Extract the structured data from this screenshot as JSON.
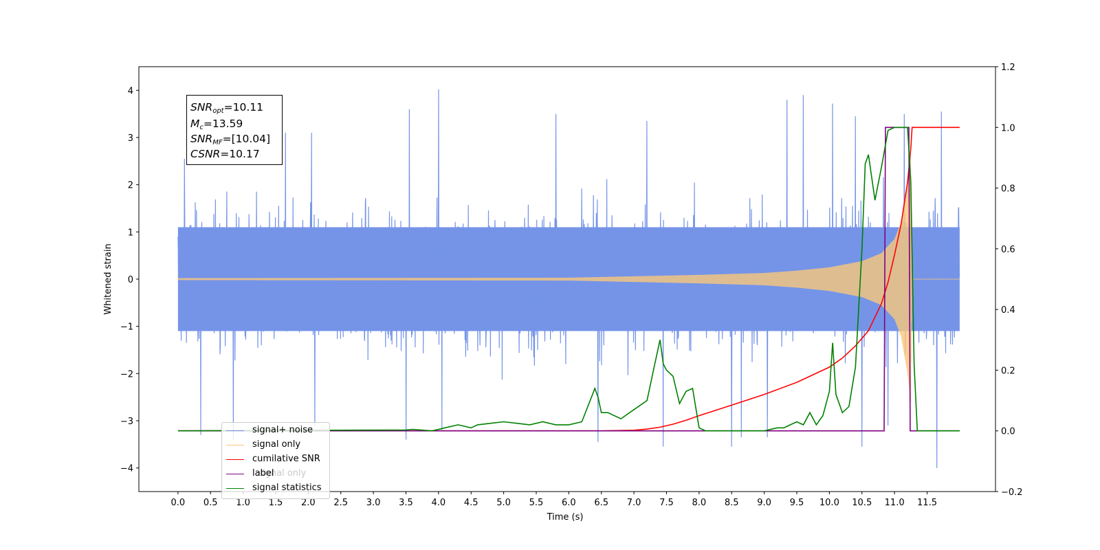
{
  "chart_data": {
    "type": "line",
    "xlabel": "Time (s)",
    "ylabel": "Whitened strain",
    "xlim": [
      -0.6,
      12.55
    ],
    "ylim": [
      -4.5,
      4.5
    ],
    "y2lim": [
      -0.2,
      1.2
    ],
    "x_ticks": [
      "0.0",
      "0.5",
      "1.0",
      "1.5",
      "2.0",
      "2.5",
      "3.0",
      "3.5",
      "4.0",
      "4.5",
      "5.0",
      "5.5",
      "6.0",
      "6.5",
      "7.0",
      "7.5",
      "8.0",
      "8.5",
      "9.0",
      "9.5",
      "10.0",
      "10.5",
      "11.0",
      "11.5"
    ],
    "y_ticks": [
      "−4",
      "−3",
      "−2",
      "−1",
      "0",
      "1",
      "2",
      "3",
      "4"
    ],
    "y2_ticks": [
      "−0.2",
      "0.0",
      "0.2",
      "0.4",
      "0.6",
      "0.8",
      "1.0",
      "1.2"
    ],
    "annotation": {
      "snr_opt": "=10.11",
      "mc": "=13.59",
      "snr_mf": "=[10.04]",
      "csnr": "=10.17"
    },
    "series": [
      {
        "name": "signal+ noise",
        "color": "#7594e8",
        "axis": "left",
        "noise_band": {
          "x_start": 0.0,
          "x_end": 12.0,
          "typical_max": 2.6,
          "typical_min": -2.6
        },
        "peaks": [
          [
            4.0,
            4.02
          ],
          [
            10.05,
            3.72
          ],
          [
            9.6,
            3.9
          ],
          [
            9.35,
            3.8
          ],
          [
            11.72,
            3.55
          ],
          [
            11.15,
            3.5
          ],
          [
            10.4,
            3.45
          ],
          [
            6.45,
            3.45
          ],
          [
            7.2,
            3.35
          ],
          [
            5.8,
            3.5
          ],
          [
            3.55,
            3.6
          ],
          [
            1.65,
            3.1
          ],
          [
            2.05,
            3.1
          ],
          [
            0.1,
            2.55
          ]
        ],
        "troughs": [
          [
            11.65,
            -4.0
          ],
          [
            8.5,
            -3.55
          ],
          [
            10.5,
            -3.55
          ],
          [
            3.5,
            -3.4
          ],
          [
            0.85,
            -3.4
          ],
          [
            0.35,
            -3.3
          ],
          [
            4.05,
            -3.2
          ],
          [
            6.45,
            -3.45
          ],
          [
            7.45,
            -3.55
          ],
          [
            9.05,
            -3.35
          ],
          [
            8.65,
            -3.35
          ],
          [
            2.1,
            -3.1
          ],
          [
            10.9,
            -3.1
          ]
        ]
      },
      {
        "name": "signal only",
        "color": "#f9c77a",
        "axis": "left",
        "envelope": [
          [
            0.0,
            0.02
          ],
          [
            6.0,
            0.03
          ],
          [
            7.0,
            0.06
          ],
          [
            8.0,
            0.09
          ],
          [
            9.0,
            0.13
          ],
          [
            9.5,
            0.18
          ],
          [
            10.0,
            0.25
          ],
          [
            10.5,
            0.38
          ],
          [
            10.8,
            0.55
          ],
          [
            11.0,
            0.85
          ],
          [
            11.1,
            1.2
          ],
          [
            11.2,
            2.0
          ],
          [
            11.25,
            2.6
          ],
          [
            11.27,
            0.0
          ],
          [
            12.0,
            0.0
          ]
        ]
      },
      {
        "name": "cumilative SNR",
        "color": "#ff0000",
        "axis": "right",
        "x": [
          0.0,
          6.5,
          7.0,
          7.2,
          7.4,
          7.6,
          7.8,
          8.0,
          8.5,
          9.0,
          9.5,
          10.0,
          10.2,
          10.4,
          10.6,
          10.8,
          10.9,
          11.0,
          11.1,
          11.2,
          11.25,
          11.27,
          11.5,
          12.0
        ],
        "y": [
          0.0,
          0.0,
          0.002,
          0.006,
          0.012,
          0.022,
          0.035,
          0.05,
          0.085,
          0.12,
          0.16,
          0.21,
          0.24,
          0.28,
          0.33,
          0.42,
          0.49,
          0.58,
          0.68,
          0.82,
          0.93,
          1.0,
          1.0,
          1.0
        ]
      },
      {
        "name": "label",
        "color": "#800080",
        "axis": "right",
        "x": [
          0.0,
          10.84,
          10.86,
          11.22,
          11.24,
          12.0
        ],
        "y": [
          0.0,
          0.0,
          1.0,
          1.0,
          0.0,
          0.0
        ]
      },
      {
        "name": "signal statistics",
        "color": "#008000",
        "axis": "right",
        "x": [
          0.0,
          3.5,
          3.6,
          3.9,
          4.1,
          4.3,
          4.5,
          4.6,
          4.8,
          5.0,
          5.2,
          5.4,
          5.6,
          5.8,
          6.0,
          6.2,
          6.4,
          6.45,
          6.5,
          6.6,
          6.8,
          7.0,
          7.2,
          7.3,
          7.4,
          7.45,
          7.5,
          7.6,
          7.7,
          7.8,
          7.9,
          8.0,
          8.1,
          8.5,
          9.0,
          9.2,
          9.3,
          9.4,
          9.5,
          9.6,
          9.7,
          9.8,
          9.9,
          10.0,
          10.05,
          10.1,
          10.2,
          10.3,
          10.4,
          10.5,
          10.55,
          10.6,
          10.7,
          10.8,
          10.9,
          11.0,
          11.2,
          11.25,
          11.3,
          11.35,
          12.0
        ],
        "y": [
          0.0,
          0.003,
          0.005,
          0.0,
          0.01,
          0.02,
          0.01,
          0.02,
          0.025,
          0.03,
          0.025,
          0.02,
          0.03,
          0.02,
          0.02,
          0.03,
          0.14,
          0.11,
          0.06,
          0.06,
          0.04,
          0.07,
          0.1,
          0.2,
          0.3,
          0.22,
          0.2,
          0.18,
          0.09,
          0.13,
          0.14,
          0.01,
          0.0,
          0.0,
          0.0,
          0.01,
          0.01,
          0.02,
          0.03,
          0.02,
          0.06,
          0.02,
          0.05,
          0.13,
          0.29,
          0.12,
          0.06,
          0.08,
          0.21,
          0.6,
          0.88,
          0.91,
          0.76,
          0.87,
          0.99,
          1.0,
          1.0,
          0.82,
          0.22,
          0.0,
          0.0
        ]
      }
    ],
    "legend": {
      "location": "lower-left",
      "entries": [
        "signal+ noise",
        "signal only",
        "cumilative SNR",
        "label",
        "signal statistics"
      ],
      "obscured_text": "signal only"
    }
  }
}
